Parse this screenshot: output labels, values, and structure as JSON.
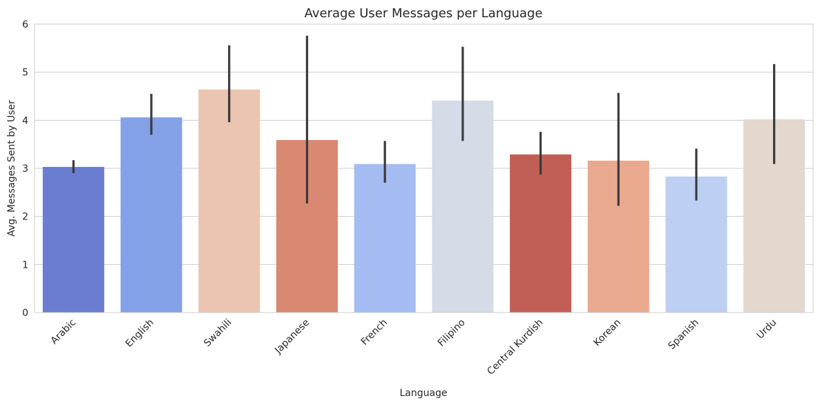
{
  "chart_data": {
    "type": "bar",
    "title": "Average User Messages per Language",
    "xlabel": "Language",
    "ylabel": "Avg. Messages Sent by User",
    "ylim": [
      0,
      6
    ],
    "yticks": [
      0,
      1,
      2,
      3,
      4,
      5,
      6
    ],
    "grid": "horizontal",
    "categories": [
      "Arabic",
      "English",
      "Swahili",
      "Japanese",
      "French",
      "Filipino",
      "Central Kurdish",
      "Korean",
      "Spanish",
      "Urdu"
    ],
    "values": [
      3.03,
      4.06,
      4.64,
      3.59,
      3.09,
      4.41,
      3.29,
      3.16,
      2.83,
      4.02
    ],
    "error_low": [
      2.9,
      3.7,
      3.96,
      2.27,
      2.7,
      3.57,
      2.87,
      2.22,
      2.33,
      3.09
    ],
    "error_high": [
      3.17,
      4.55,
      5.56,
      5.76,
      3.57,
      5.53,
      3.76,
      4.57,
      3.41,
      5.17
    ],
    "colors": [
      "#6a7dd1",
      "#84a0e6",
      "#ebc5b2",
      "#d98872",
      "#a4bcf2",
      "#d5dbe7",
      "#c15f56",
      "#e8a98f",
      "#bdcff2",
      "#e4d7ce"
    ],
    "error_color": "#3a3a3a"
  }
}
